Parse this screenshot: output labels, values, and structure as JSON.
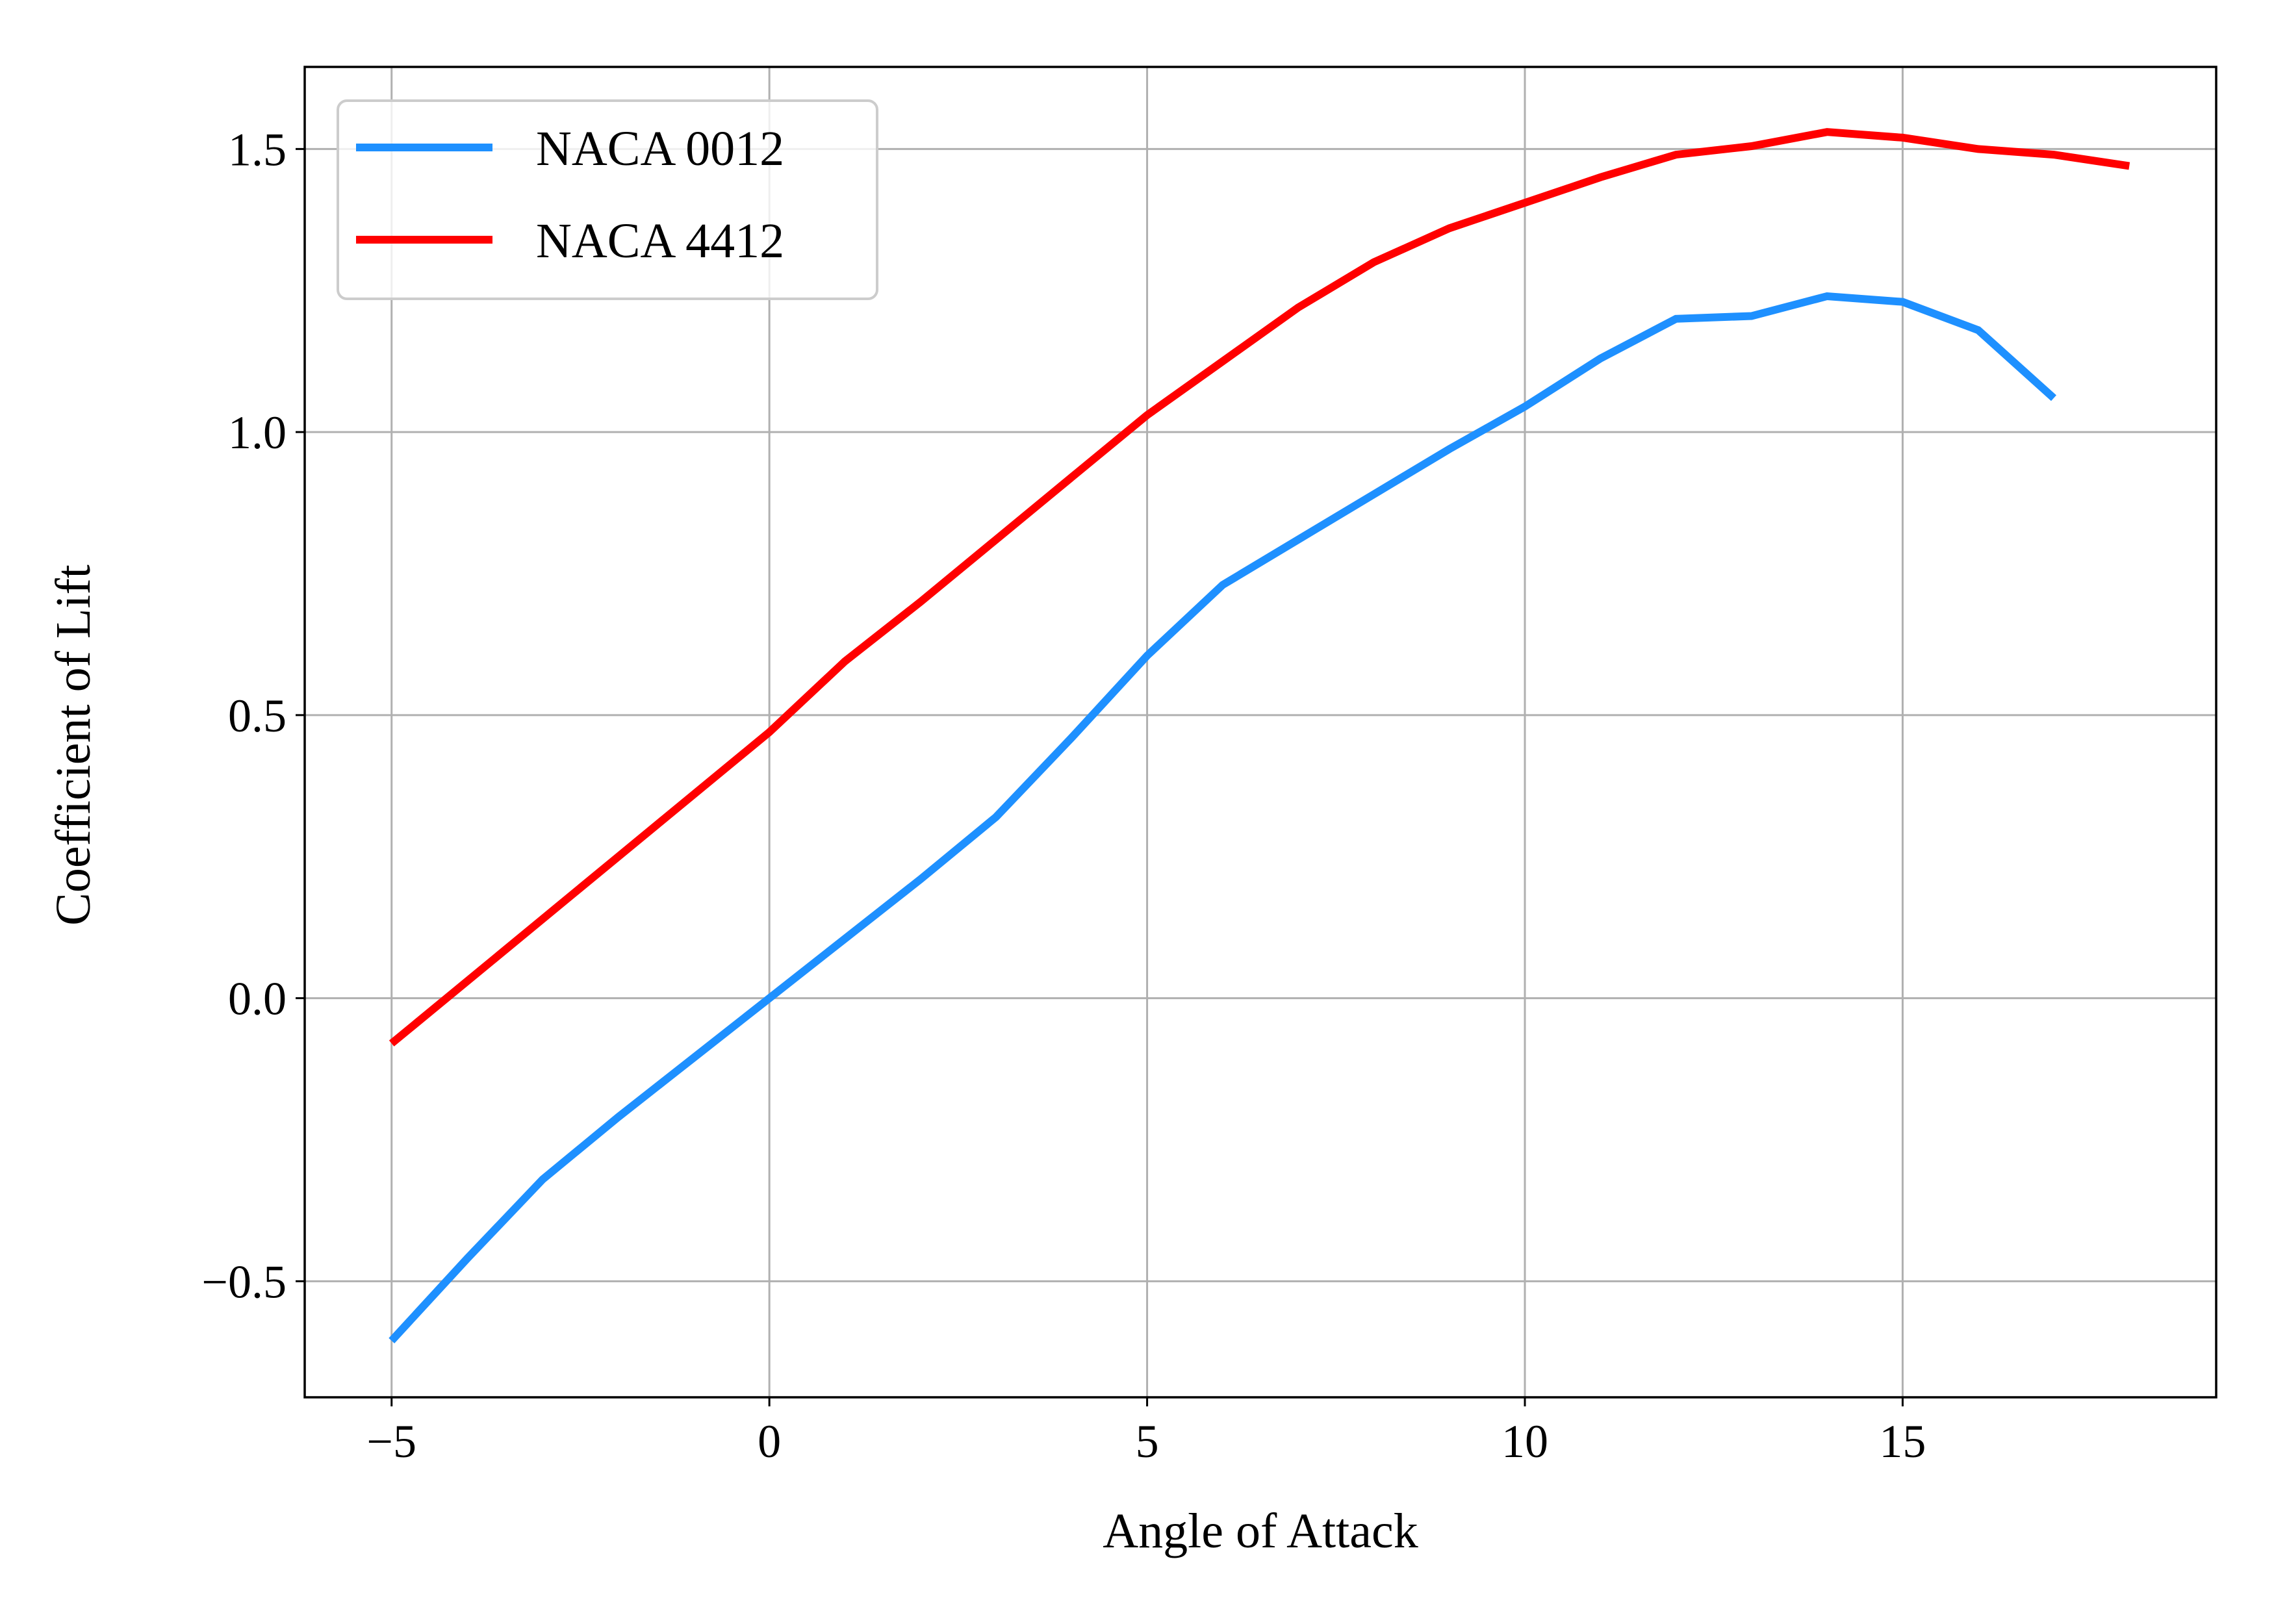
{
  "chart_data": {
    "type": "line",
    "xlabel": "Angle of Attack",
    "ylabel": "Coefficient of Lift",
    "xlim": [
      -6.15,
      19.15
    ],
    "ylim": [
      -0.705,
      1.645
    ],
    "xticks": [
      -5,
      0,
      5,
      10,
      15
    ],
    "xtick_labels": [
      "−5",
      "0",
      "5",
      "10",
      "15"
    ],
    "yticks": [
      -0.5,
      0.0,
      0.5,
      1.0,
      1.5
    ],
    "ytick_labels": [
      "−0.5",
      "0.0",
      "0.5",
      "1.0",
      "1.5"
    ],
    "grid": true,
    "legend_position": "top-left",
    "series": [
      {
        "name": "NACA 0012",
        "color": "#1e90ff",
        "x": [
          -5,
          -4,
          -3,
          -2,
          -1,
          0,
          1,
          2,
          3,
          4,
          5,
          6,
          7,
          8,
          9,
          10,
          11,
          12,
          13,
          14,
          15,
          16,
          17
        ],
        "y": [
          -0.605,
          -0.46,
          -0.32,
          -0.21,
          -0.105,
          0.0,
          0.105,
          0.21,
          0.32,
          0.46,
          0.605,
          0.73,
          0.81,
          0.89,
          0.97,
          1.045,
          1.13,
          1.2,
          1.205,
          1.24,
          1.23,
          1.18,
          1.06
        ]
      },
      {
        "name": "NACA 4412",
        "color": "#ff0000",
        "x": [
          -5,
          -4,
          -3,
          -2,
          -1,
          0,
          1,
          2,
          3,
          4,
          5,
          6,
          7,
          8,
          9,
          10,
          11,
          12,
          13,
          14,
          15,
          16,
          17,
          18
        ],
        "y": [
          -0.08,
          0.03,
          0.14,
          0.25,
          0.36,
          0.47,
          0.595,
          0.7,
          0.81,
          0.92,
          1.03,
          1.125,
          1.22,
          1.3,
          1.36,
          1.405,
          1.45,
          1.49,
          1.505,
          1.53,
          1.52,
          1.5,
          1.49,
          1.47
        ]
      }
    ]
  }
}
